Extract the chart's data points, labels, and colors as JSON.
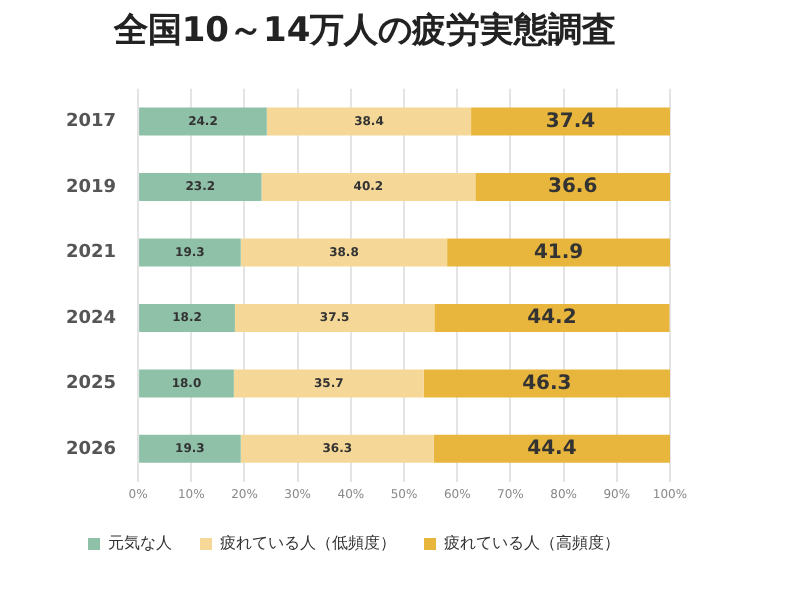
{
  "chart_data": {
    "type": "bar",
    "orientation": "horizontal",
    "stacked": true,
    "title": "全国10～14万人の疲労実態調査",
    "categories": [
      "2017",
      "2019",
      "2021",
      "2024",
      "2025",
      "2026"
    ],
    "series": [
      {
        "name": "元気な人",
        "color": "#8fc1a9",
        "values": [
          24.2,
          23.2,
          19.3,
          18.2,
          18.0,
          19.3
        ],
        "value_labels": [
          "24.2",
          "23.2",
          "19.3",
          "18.2",
          "18.0",
          "19.3"
        ]
      },
      {
        "name": "疲れている人（低頻度）",
        "color": "#f5d898",
        "values": [
          38.4,
          40.2,
          38.8,
          37.5,
          35.7,
          36.3
        ],
        "value_labels": [
          "38.4",
          "40.2",
          "38.8",
          "37.5",
          "35.7",
          "36.3"
        ]
      },
      {
        "name": "疲れている人（高頻度）",
        "color": "#e8b63c",
        "values": [
          37.4,
          36.6,
          41.9,
          44.2,
          46.3,
          44.4
        ],
        "value_labels": [
          "37.4",
          "36.6",
          "41.9",
          "44.2",
          "46.3",
          "44.4"
        ]
      }
    ],
    "xlim": [
      0,
      100
    ],
    "xticks": [
      {
        "value": 0,
        "label": "0%"
      },
      {
        "value": 10,
        "label": "10%"
      },
      {
        "value": 20,
        "label": "20%"
      },
      {
        "value": 30,
        "label": "30%"
      },
      {
        "value": 40,
        "label": "40%"
      },
      {
        "value": 50,
        "label": "50%"
      },
      {
        "value": 60,
        "label": "60%"
      },
      {
        "value": 70,
        "label": "70%"
      },
      {
        "value": 80,
        "label": "80%"
      },
      {
        "value": 90,
        "label": "90%"
      },
      {
        "value": 100,
        "label": "100%"
      }
    ],
    "grid": "x",
    "legend": "bottom left"
  }
}
